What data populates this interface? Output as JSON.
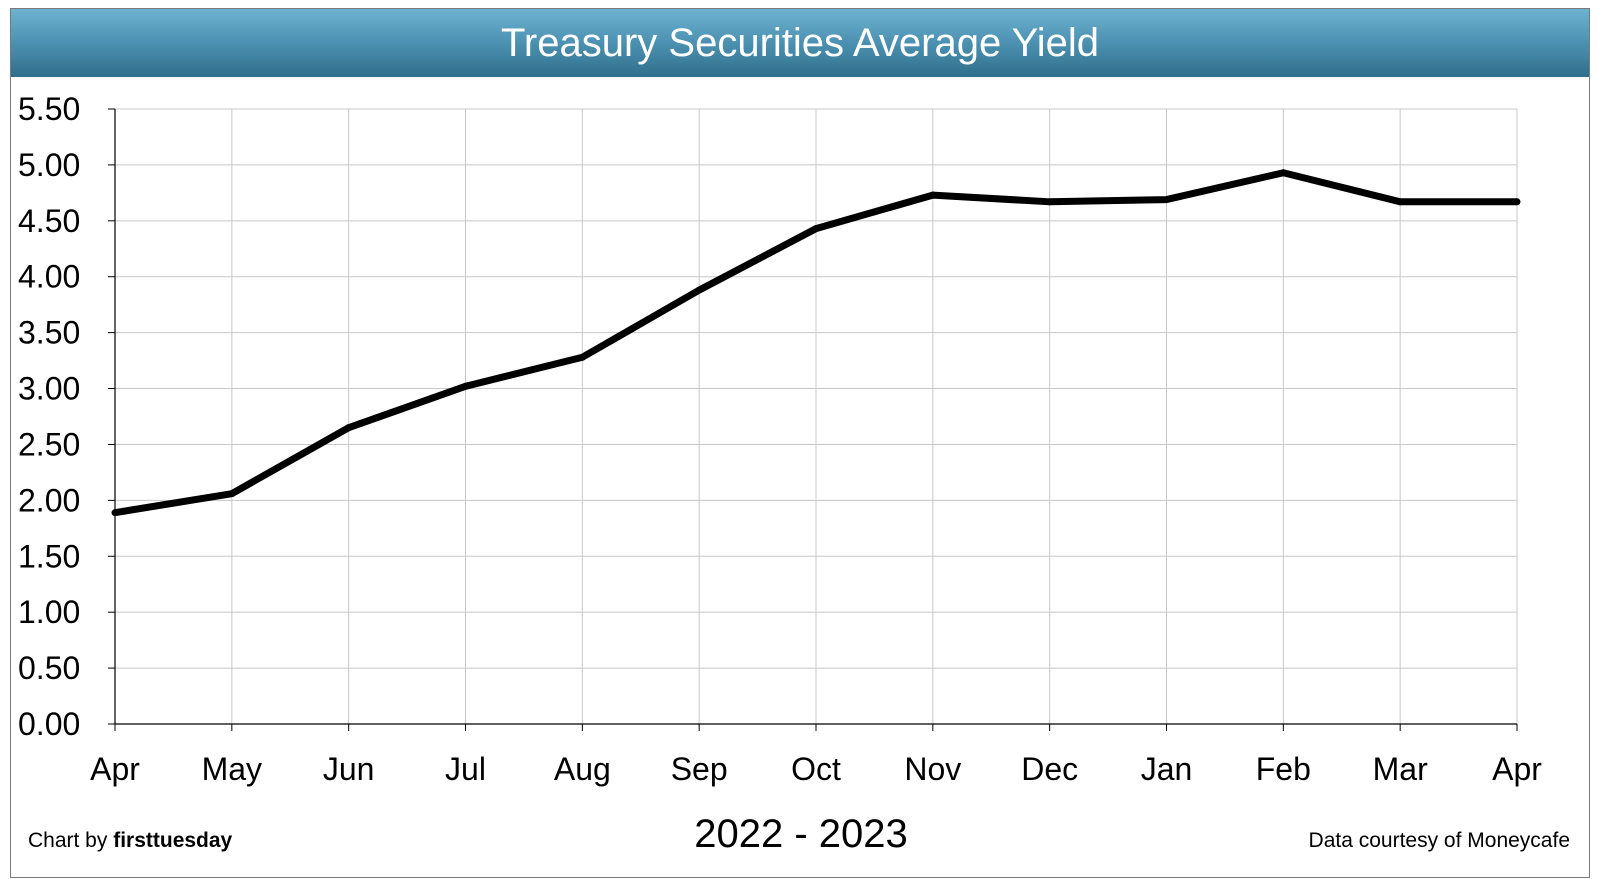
{
  "chart_data": {
    "type": "line",
    "title": "Treasury Securities Average Yield",
    "xlabel": "2022 - 2023",
    "ylabel": "",
    "categories": [
      "Apr",
      "May",
      "Jun",
      "Jul",
      "Aug",
      "Sep",
      "Oct",
      "Nov",
      "Dec",
      "Jan",
      "Feb",
      "Mar",
      "Apr"
    ],
    "series": [
      {
        "values": [
          1.89,
          2.06,
          2.65,
          3.02,
          3.28,
          3.88,
          4.43,
          4.73,
          4.67,
          4.69,
          4.93,
          4.67,
          4.67
        ],
        "color": "#000000"
      }
    ],
    "ylim": [
      0,
      5.5
    ],
    "yticks": [
      "0.00",
      "0.50",
      "1.00",
      "1.50",
      "2.00",
      "2.50",
      "3.00",
      "3.50",
      "4.00",
      "4.50",
      "5.00",
      "5.50"
    ],
    "grid": true,
    "legend": "none"
  },
  "credits": {
    "left_prefix": "Chart by ",
    "left_brand": "firsttuesday",
    "right": "Data courtesy of Moneycafe"
  },
  "colors": {
    "title_bar_top": "#6fb3d1",
    "title_bar_bottom": "#2f6f8c",
    "title_text": "#ffffff",
    "gridline": "#c8c8c8",
    "line": "#000000"
  }
}
